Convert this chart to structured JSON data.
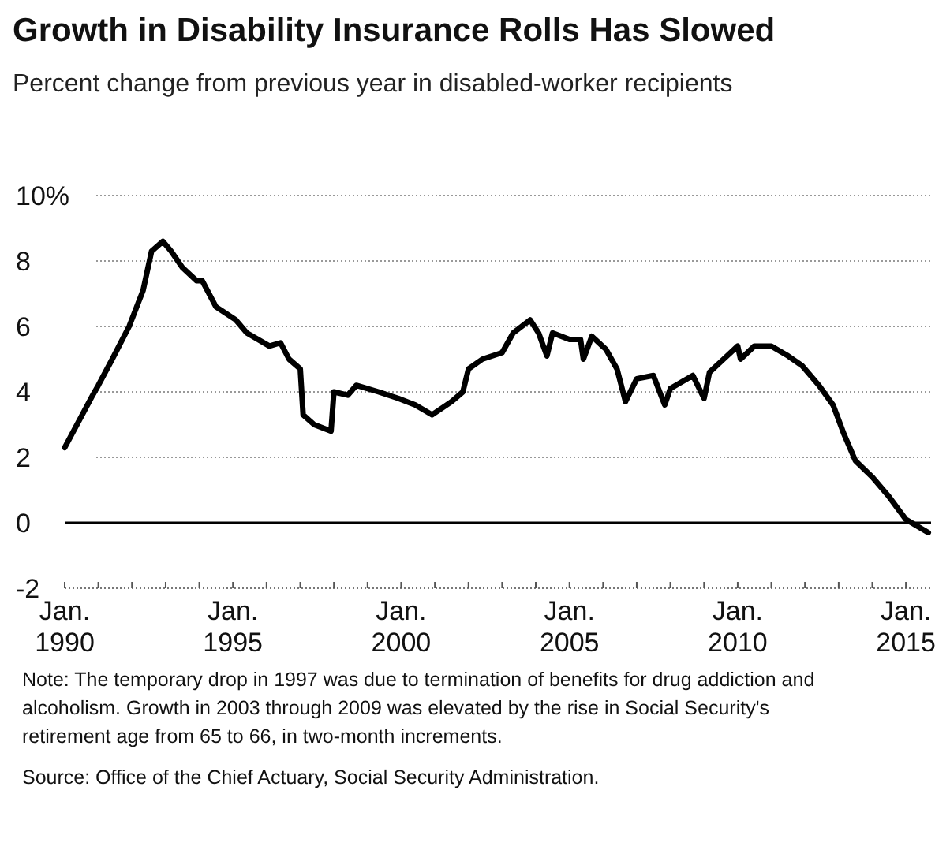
{
  "chart_data": {
    "type": "line",
    "title": "Growth in Disability Insurance Rolls Has Slowed",
    "subtitle": "Percent change from previous year in disabled-worker recipients",
    "annotations": [
      "Note: The temporary drop in 1997 was due to termination of benefits for drug addiction and alcoholism.  Growth in 2003 through 2009 was elevated by the rise in Social Security's retirement age from 65 to 66, in two-month increments.",
      "Source: Office of the Chief Actuary, Social Security Administration."
    ],
    "x": [
      "1990-01",
      "1990-11",
      "1991-01",
      "1991-06",
      "1991-12",
      "1992-05",
      "1992-08",
      "1992-12",
      "1993-03",
      "1993-07",
      "1993-12",
      "1994-02",
      "1994-07",
      "1995-02",
      "1995-06",
      "1996-02",
      "1996-06",
      "1996-09",
      "1997-01",
      "1997-02",
      "1997-06",
      "1997-12",
      "1998-01",
      "1998-06",
      "1998-09",
      "1999-05",
      "1999-12",
      "2000-06",
      "2000-12",
      "2001-07",
      "2001-11",
      "2002-01",
      "2002-06",
      "2003-01",
      "2003-05",
      "2003-11",
      "2004-02",
      "2004-05",
      "2004-07",
      "2005-01",
      "2005-05",
      "2005-06",
      "2005-09",
      "2006-02",
      "2006-06",
      "2006-09",
      "2007-01",
      "2007-07",
      "2007-11",
      "2008-01",
      "2008-09",
      "2009-01",
      "2009-03",
      "2009-08",
      "2010-01",
      "2010-02",
      "2010-07",
      "2011-01",
      "2011-07",
      "2011-12",
      "2012-06",
      "2012-11",
      "2013-03",
      "2013-07",
      "2014-01",
      "2014-07",
      "2015-01",
      "2015-09"
    ],
    "series": [
      {
        "color": "#000000",
        "values": [
          2.3,
          3.9,
          4.2,
          5.0,
          6.0,
          7.1,
          8.3,
          8.6,
          8.3,
          7.8,
          7.4,
          7.4,
          6.6,
          6.2,
          5.8,
          5.4,
          5.5,
          5.0,
          4.7,
          3.3,
          3.0,
          2.8,
          4.0,
          3.9,
          4.2,
          4.0,
          3.8,
          3.6,
          3.3,
          3.7,
          4.0,
          4.7,
          5.0,
          5.2,
          5.8,
          6.2,
          5.8,
          5.1,
          5.8,
          5.6,
          5.6,
          5.0,
          5.7,
          5.3,
          4.7,
          3.7,
          4.4,
          4.5,
          3.6,
          4.1,
          4.5,
          3.8,
          4.6,
          5.0,
          5.4,
          5.0,
          5.4,
          5.4,
          5.1,
          4.8,
          4.2,
          3.6,
          2.7,
          1.9,
          1.4,
          0.8,
          0.1,
          -0.3
        ]
      }
    ],
    "xlim": [
      "1990-01",
      "2015-10"
    ],
    "xticks": [
      {
        "value": "1990-01",
        "label": "Jan. 1990"
      },
      {
        "value": "1991-01",
        "label": null
      },
      {
        "value": "1992-01",
        "label": null
      },
      {
        "value": "1993-01",
        "label": null
      },
      {
        "value": "1994-01",
        "label": null
      },
      {
        "value": "1995-01",
        "label": "Jan. 1995"
      },
      {
        "value": "1996-01",
        "label": null
      },
      {
        "value": "1997-01",
        "label": null
      },
      {
        "value": "1998-01",
        "label": null
      },
      {
        "value": "1999-01",
        "label": null
      },
      {
        "value": "2000-01",
        "label": "Jan. 2000"
      },
      {
        "value": "2001-01",
        "label": null
      },
      {
        "value": "2002-01",
        "label": null
      },
      {
        "value": "2003-01",
        "label": null
      },
      {
        "value": "2004-01",
        "label": null
      },
      {
        "value": "2005-01",
        "label": "Jan. 2005"
      },
      {
        "value": "2006-01",
        "label": null
      },
      {
        "value": "2007-01",
        "label": null
      },
      {
        "value": "2008-01",
        "label": null
      },
      {
        "value": "2009-01",
        "label": null
      },
      {
        "value": "2010-01",
        "label": "Jan. 2010"
      },
      {
        "value": "2011-01",
        "label": null
      },
      {
        "value": "2012-01",
        "label": null
      },
      {
        "value": "2013-01",
        "label": null
      },
      {
        "value": "2014-01",
        "label": null
      },
      {
        "value": "2015-01",
        "label": "Jan. 2015"
      }
    ],
    "ylim": [
      -2,
      10
    ],
    "yticks": [
      -2,
      0,
      2,
      4,
      6,
      8,
      {
        "value": 10,
        "label": "10%"
      }
    ],
    "ref_lines": [
      {
        "axis": "y",
        "value": 0,
        "color": "#000000"
      }
    ],
    "grid": "y",
    "marker": "none",
    "line_style": "solid"
  }
}
